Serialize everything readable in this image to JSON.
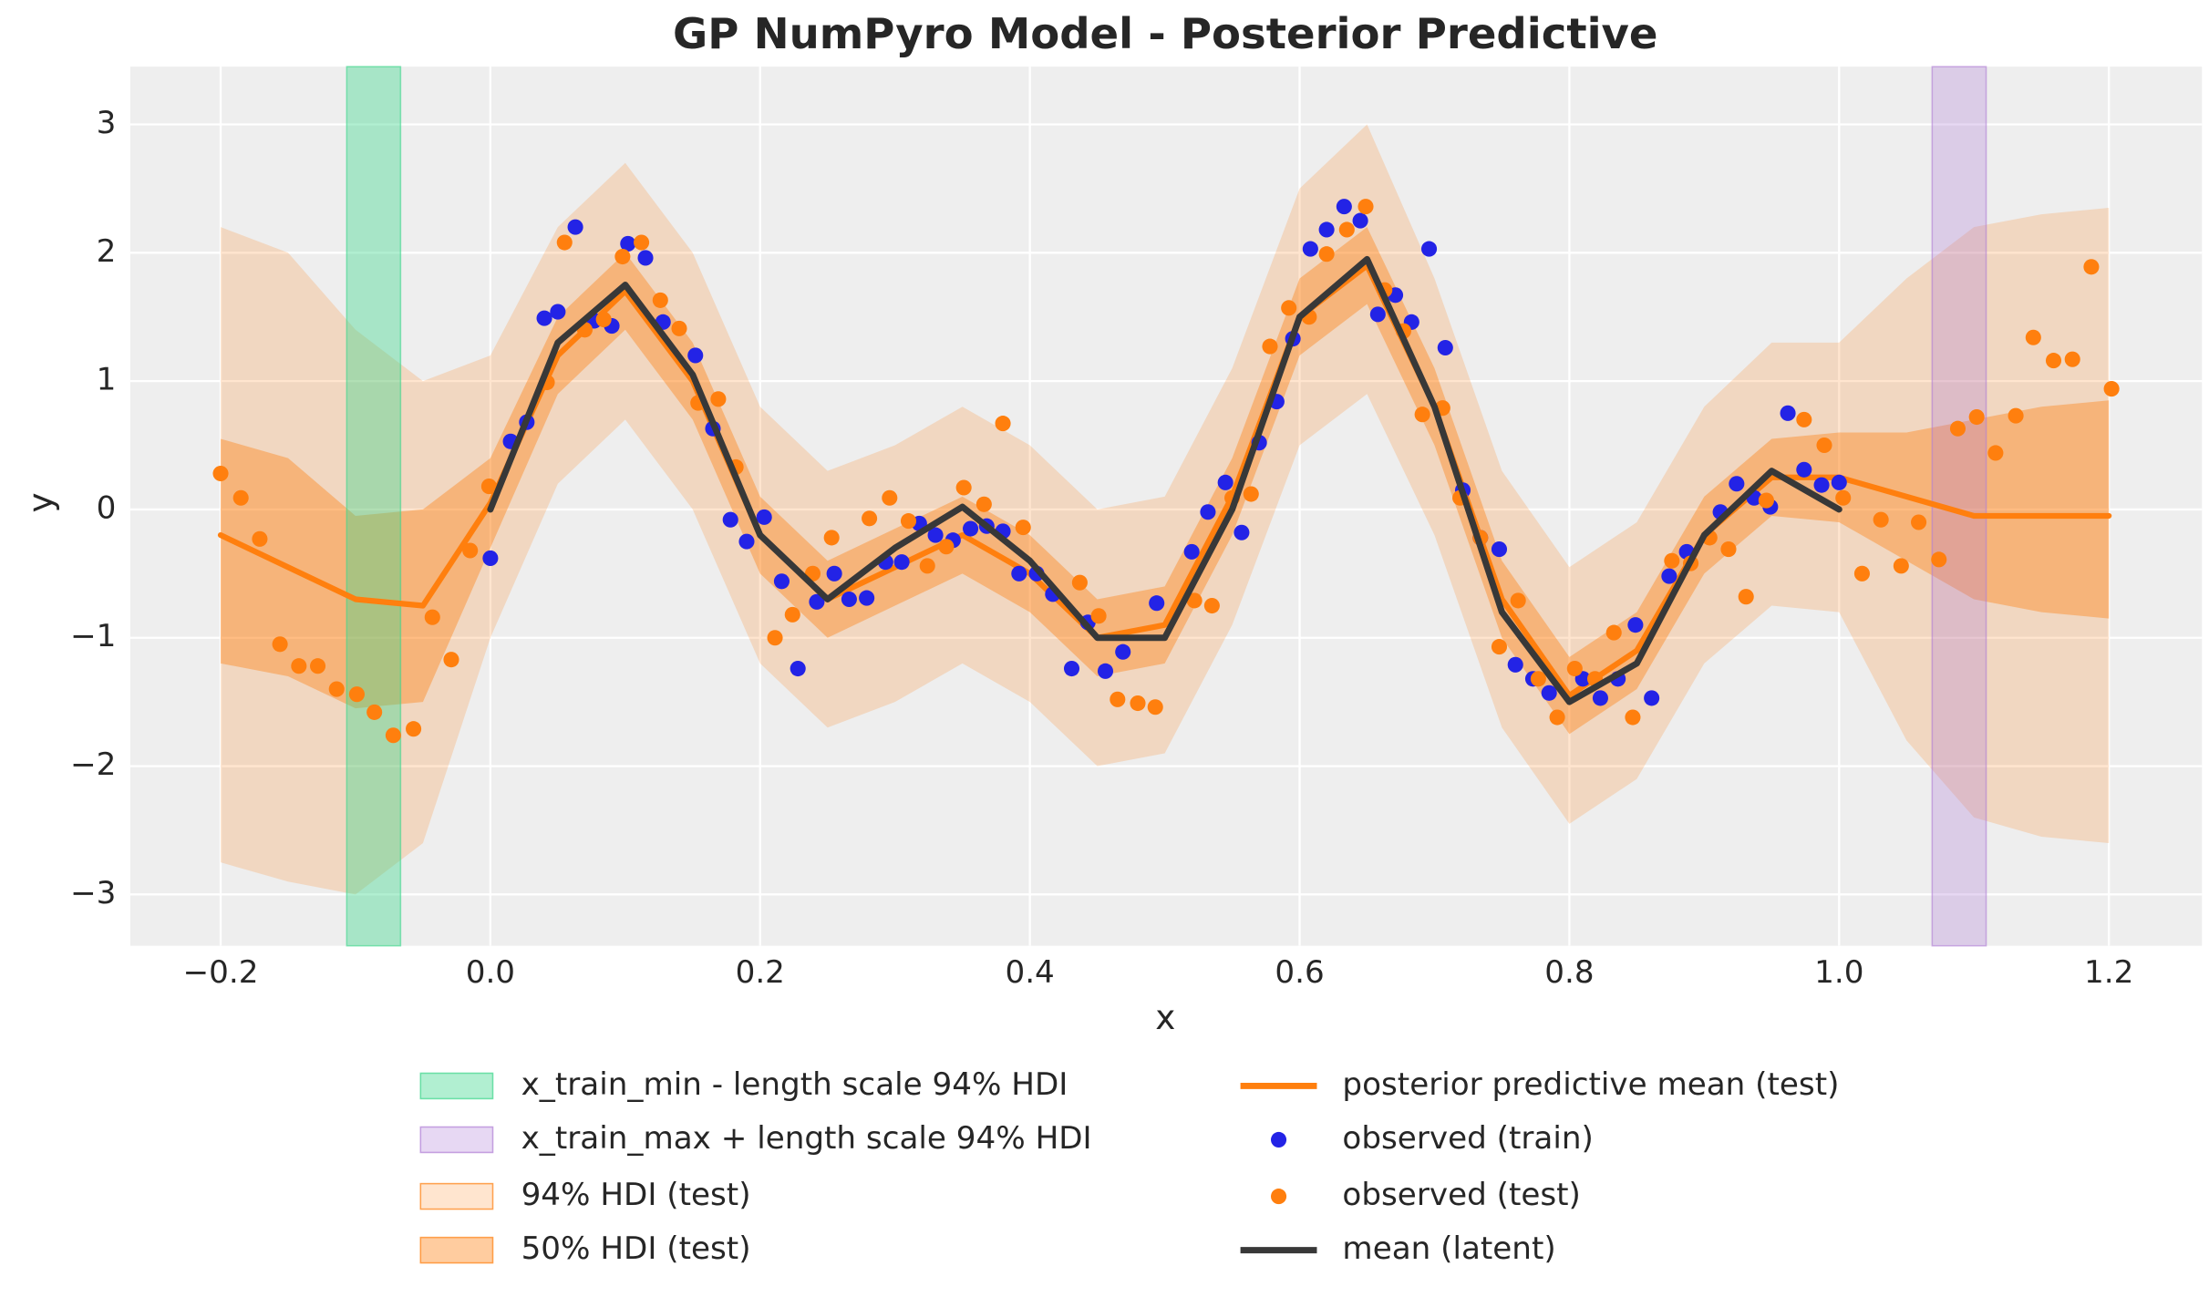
{
  "chart_data": {
    "type": "line",
    "title": "GP NumPyro Model - Posterior Predictive",
    "xlabel": "x",
    "ylabel": "y",
    "xlim": [
      -0.267,
      1.269
    ],
    "ylim": [
      -3.4,
      3.45
    ],
    "xticks": [
      {
        "value": -0.2,
        "label": "−0.2"
      },
      {
        "value": 0,
        "label": "0.0"
      },
      0.2,
      0.4,
      0.6,
      0.8,
      {
        "value": 1,
        "label": "1.0"
      },
      1.2
    ],
    "yticks": [
      {
        "value": -3,
        "label": "−3"
      },
      {
        "value": -2,
        "label": "−2"
      },
      {
        "value": -1,
        "label": "−1"
      },
      0,
      1,
      2,
      3
    ],
    "grid": true,
    "spans": [
      {
        "name": "x_train_min - length scale 94% HDI",
        "color": "#3dd68c",
        "alpha": 0.4,
        "xlim": [
          -0.1065,
          -0.0666
        ]
      },
      {
        "name": "x_train_max + length scale 94% HDI",
        "color": "#b07fd6",
        "alpha": 0.3,
        "xlim": [
          1.069,
          1.109
        ]
      }
    ],
    "bands": [
      {
        "name": "94% HDI (test)",
        "color": "#ff7f0e",
        "alpha": 0.2,
        "x": [
          -0.2,
          -0.15,
          -0.1,
          -0.05,
          0,
          0.05,
          0.1,
          0.15,
          0.2,
          0.25,
          0.3,
          0.35,
          0.4,
          0.45,
          0.5,
          0.55,
          0.6,
          0.65,
          0.7,
          0.75,
          0.8,
          0.85,
          0.9,
          0.95,
          1,
          1.05,
          1.1,
          1.15,
          1.2
        ],
        "lower": [
          -2.75,
          -2.9,
          -3.0,
          -2.6,
          -1.0,
          0.2,
          0.7,
          0.0,
          -1.2,
          -1.7,
          -1.5,
          -1.2,
          -1.5,
          -2.0,
          -1.9,
          -0.9,
          0.5,
          0.9,
          -0.2,
          -1.7,
          -2.45,
          -2.1,
          -1.2,
          -0.75,
          -0.8,
          -1.8,
          -2.4,
          -2.55,
          -2.6
        ],
        "upper": [
          2.2,
          2.0,
          1.4,
          1.0,
          1.2,
          2.2,
          2.7,
          2.0,
          0.8,
          0.3,
          0.5,
          0.8,
          0.5,
          0.0,
          0.1,
          1.1,
          2.5,
          3.0,
          1.8,
          0.3,
          -0.45,
          -0.1,
          0.8,
          1.3,
          1.3,
          1.8,
          2.2,
          2.3,
          2.35
        ]
      },
      {
        "name": "50% HDI (test)",
        "color": "#ff7f0e",
        "alpha": 0.4,
        "x": [
          -0.2,
          -0.15,
          -0.1,
          -0.05,
          0,
          0.05,
          0.1,
          0.15,
          0.2,
          0.25,
          0.3,
          0.35,
          0.4,
          0.45,
          0.5,
          0.55,
          0.6,
          0.65,
          0.7,
          0.75,
          0.8,
          0.85,
          0.9,
          0.95,
          1,
          1.05,
          1.1,
          1.15,
          1.2
        ],
        "lower": [
          -1.2,
          -1.3,
          -1.55,
          -1.5,
          -0.3,
          0.9,
          1.4,
          0.7,
          -0.5,
          -1.0,
          -0.75,
          -0.5,
          -0.8,
          -1.3,
          -1.2,
          -0.2,
          1.2,
          1.6,
          0.5,
          -1.0,
          -1.75,
          -1.4,
          -0.5,
          -0.05,
          -0.1,
          -0.4,
          -0.7,
          -0.8,
          -0.85
        ],
        "upper": [
          0.55,
          0.4,
          -0.05,
          0.0,
          0.4,
          1.5,
          2.0,
          1.3,
          0.1,
          -0.4,
          -0.15,
          0.1,
          -0.2,
          -0.7,
          -0.6,
          0.4,
          1.8,
          2.2,
          1.1,
          -0.4,
          -1.15,
          -0.8,
          0.1,
          0.55,
          0.6,
          0.6,
          0.7,
          0.8,
          0.85
        ]
      }
    ],
    "series": [
      {
        "name": "posterior predictive mean (test)",
        "type": "line",
        "color": "#ff7f0e",
        "x": [
          -0.2,
          -0.15,
          -0.1,
          -0.05,
          0,
          0.05,
          0.1,
          0.15,
          0.2,
          0.25,
          0.3,
          0.35,
          0.4,
          0.45,
          0.5,
          0.55,
          0.6,
          0.65,
          0.7,
          0.75,
          0.8,
          0.85,
          0.9,
          0.95,
          1,
          1.05,
          1.1,
          1.15,
          1.2
        ],
        "values": [
          -0.2,
          -0.45,
          -0.7,
          -0.75,
          0.05,
          1.2,
          1.7,
          1.0,
          -0.2,
          -0.7,
          -0.45,
          -0.2,
          -0.5,
          -1.0,
          -0.9,
          0.1,
          1.5,
          1.9,
          0.8,
          -0.7,
          -1.45,
          -1.1,
          -0.2,
          0.25,
          0.25,
          0.1,
          -0.05,
          -0.05,
          -0.05
        ]
      },
      {
        "name": "observed (train)",
        "type": "scatter",
        "color": "#2323e6",
        "x": [
          0.0,
          0.015,
          0.027,
          0.04,
          0.05,
          0.063,
          0.077,
          0.09,
          0.102,
          0.115,
          0.128,
          0.152,
          0.165,
          0.178,
          0.19,
          0.203,
          0.216,
          0.228,
          0.242,
          0.255,
          0.266,
          0.279,
          0.293,
          0.305,
          0.318,
          0.33,
          0.343,
          0.356,
          0.368,
          0.38,
          0.392,
          0.405,
          0.417,
          0.431,
          0.443,
          0.456,
          0.469,
          0.494,
          0.52,
          0.532,
          0.545,
          0.557,
          0.57,
          0.583,
          0.595,
          0.608,
          0.62,
          0.633,
          0.645,
          0.658,
          0.671,
          0.683,
          0.696,
          0.708,
          0.721,
          0.734,
          0.748,
          0.76,
          0.773,
          0.785,
          0.81,
          0.823,
          0.836,
          0.849,
          0.861,
          0.874,
          0.887,
          0.912,
          0.924,
          0.937,
          0.949,
          0.962,
          0.974,
          0.987,
          1.0
        ],
        "values": [
          -0.38,
          0.53,
          0.68,
          1.49,
          1.54,
          2.2,
          1.47,
          1.43,
          2.07,
          1.96,
          1.46,
          1.2,
          0.63,
          -0.08,
          -0.25,
          -0.06,
          -0.56,
          -1.24,
          -0.72,
          -0.5,
          -0.7,
          -0.69,
          -0.41,
          -0.41,
          -0.11,
          -0.2,
          -0.24,
          -0.15,
          -0.13,
          -0.17,
          -0.5,
          -0.5,
          -0.66,
          -1.24,
          -0.88,
          -1.26,
          -1.11,
          -0.73,
          -0.33,
          -0.02,
          0.21,
          -0.18,
          0.52,
          0.84,
          1.33,
          2.03,
          2.18,
          2.36,
          2.25,
          1.52,
          1.67,
          1.46,
          2.03,
          1.26,
          0.15,
          -0.22,
          -0.31,
          -1.21,
          -1.32,
          -1.43,
          -1.32,
          -1.47,
          -1.32,
          -0.9,
          -1.47,
          -0.52,
          -0.33,
          -0.02,
          0.2,
          0.09,
          0.02,
          0.75,
          0.31,
          0.19,
          0.21
        ]
      },
      {
        "name": "observed (test)",
        "type": "scatter",
        "color": "#ff7f0e",
        "x": [
          -0.2,
          -0.185,
          -0.171,
          -0.156,
          -0.142,
          -0.128,
          -0.114,
          -0.099,
          -0.086,
          -0.072,
          -0.057,
          -0.043,
          -0.029,
          -0.015,
          -0.001,
          0.042,
          0.055,
          0.07,
          0.084,
          0.098,
          0.112,
          0.126,
          0.14,
          0.154,
          0.169,
          0.182,
          0.211,
          0.224,
          0.239,
          0.253,
          0.281,
          0.296,
          0.31,
          0.324,
          0.338,
          0.351,
          0.366,
          0.38,
          0.395,
          0.437,
          0.451,
          0.465,
          0.48,
          0.493,
          0.522,
          0.535,
          0.55,
          0.564,
          0.578,
          0.592,
          0.607,
          0.62,
          0.635,
          0.649,
          0.663,
          0.677,
          0.691,
          0.706,
          0.719,
          0.734,
          0.748,
          0.762,
          0.777,
          0.791,
          0.804,
          0.819,
          0.833,
          0.847,
          0.876,
          0.89,
          0.904,
          0.918,
          0.931,
          0.946,
          0.974,
          0.989,
          1.003,
          1.017,
          1.031,
          1.046,
          1.059,
          1.074,
          1.088,
          1.102,
          1.116,
          1.131,
          1.144,
          1.159,
          1.173,
          1.187,
          1.202
        ],
        "values": [
          0.28,
          0.09,
          -0.23,
          -1.05,
          -1.22,
          -1.22,
          -1.4,
          -1.44,
          -1.58,
          -1.76,
          -1.71,
          -0.84,
          -1.17,
          -0.32,
          0.18,
          0.99,
          2.08,
          1.4,
          1.48,
          1.97,
          2.08,
          1.63,
          1.41,
          0.83,
          0.86,
          0.33,
          -1.0,
          -0.82,
          -0.5,
          -0.22,
          -0.07,
          0.09,
          -0.09,
          -0.44,
          -0.29,
          0.17,
          0.04,
          0.67,
          -0.14,
          -0.57,
          -0.83,
          -1.48,
          -1.51,
          -1.54,
          -0.71,
          -0.75,
          0.09,
          0.12,
          1.27,
          1.57,
          1.5,
          1.99,
          2.18,
          2.36,
          1.71,
          1.39,
          0.74,
          0.79,
          0.09,
          -0.22,
          -1.07,
          -0.71,
          -1.32,
          -1.62,
          -1.24,
          -1.32,
          -0.96,
          -1.62,
          -0.4,
          -0.42,
          -0.22,
          -0.31,
          -0.68,
          0.07,
          0.7,
          0.5,
          0.09,
          -0.5,
          -0.08,
          -0.44,
          -0.1,
          -0.39,
          0.63,
          0.72,
          0.44,
          0.73,
          1.34,
          1.16,
          1.17,
          1.89,
          0.94
        ]
      },
      {
        "name": "mean (latent)",
        "type": "line",
        "color": "#383838",
        "x": [
          0,
          0.05,
          0.1,
          0.15,
          0.2,
          0.25,
          0.3,
          0.35,
          0.4,
          0.45,
          0.5,
          0.55,
          0.6,
          0.65,
          0.7,
          0.75,
          0.8,
          0.85,
          0.9,
          0.95,
          1
        ],
        "values": [
          0.0,
          1.3,
          1.75,
          1.05,
          -0.2,
          -0.7,
          -0.3,
          0.02,
          -0.4,
          -1.0,
          -1.0,
          0.0,
          1.5,
          1.95,
          0.8,
          -0.8,
          -1.5,
          -1.2,
          -0.2,
          0.3,
          0.0
        ]
      }
    ]
  }
}
